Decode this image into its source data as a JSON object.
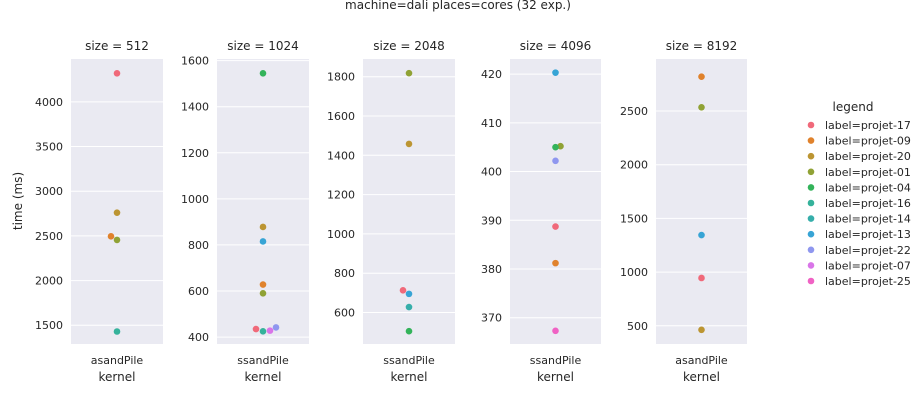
{
  "chart_data": {
    "type": "scatter",
    "suptitle": "machine=dali places=cores (32 exp.)",
    "ylabel": "time (ms)",
    "xlabel": "kernel",
    "legend": {
      "title": "legend",
      "placement": "right",
      "entries": [
        {
          "label": "label=projet-17",
          "color": "#f0697a"
        },
        {
          "label": "label=projet-09",
          "color": "#e0822c"
        },
        {
          "label": "label=projet-20",
          "color": "#bc9532"
        },
        {
          "label": "label=projet-01",
          "color": "#90a235"
        },
        {
          "label": "label=projet-04",
          "color": "#33b35a"
        },
        {
          "label": "label=projet-16",
          "color": "#35b29b"
        },
        {
          "label": "label=projet-14",
          "color": "#36aeaa"
        },
        {
          "label": "label=projet-13",
          "color": "#37a4d5"
        },
        {
          "label": "label=projet-22",
          "color": "#8f97ef"
        },
        {
          "label": "label=projet-07",
          "color": "#d975e8"
        },
        {
          "label": "label=projet-25",
          "color": "#f062c4"
        }
      ]
    },
    "grid": true,
    "panels": [
      {
        "title": "size = 512",
        "category": "asandPile",
        "ylim": [
          1290,
          4480
        ],
        "yticks": [
          1500,
          2000,
          2500,
          3000,
          3500,
          4000
        ],
        "points": [
          {
            "label": "label=projet-17",
            "y": 4320
          },
          {
            "label": "label=projet-20",
            "y": 2760
          },
          {
            "label": "label=projet-09",
            "y": 2495
          },
          {
            "label": "label=projet-01",
            "y": 2455
          },
          {
            "label": "label=projet-16",
            "y": 1430
          }
        ]
      },
      {
        "title": "size = 1024",
        "category": "ssandPile",
        "ylim": [
          370,
          1607
        ],
        "yticks": [
          400,
          600,
          800,
          1000,
          1200,
          1400,
          1600
        ],
        "points": [
          {
            "label": "label=projet-04",
            "y": 1545
          },
          {
            "label": "label=projet-20",
            "y": 878
          },
          {
            "label": "label=projet-13",
            "y": 815
          },
          {
            "label": "label=projet-09",
            "y": 628
          },
          {
            "label": "label=projet-01",
            "y": 590
          },
          {
            "label": "label=projet-17",
            "y": 435
          },
          {
            "label": "label=projet-16",
            "y": 425
          },
          {
            "label": "label=projet-07",
            "y": 428
          },
          {
            "label": "label=projet-22",
            "y": 442
          }
        ]
      },
      {
        "title": "size = 2048",
        "category": "ssandPile",
        "ylim": [
          440,
          1890
        ],
        "yticks": [
          600,
          800,
          1000,
          1200,
          1400,
          1600,
          1800
        ],
        "points": [
          {
            "label": "label=projet-01",
            "y": 1818
          },
          {
            "label": "label=projet-20",
            "y": 1458
          },
          {
            "label": "label=projet-17",
            "y": 713
          },
          {
            "label": "label=projet-13",
            "y": 695
          },
          {
            "label": "label=projet-14",
            "y": 628
          },
          {
            "label": "label=projet-04",
            "y": 505
          }
        ]
      },
      {
        "title": "size = 4096",
        "category": "ssandPile",
        "ylim": [
          364.6,
          423.1
        ],
        "yticks": [
          370,
          380,
          390,
          400,
          410,
          420
        ],
        "points": [
          {
            "label": "label=projet-13",
            "y": 420.3
          },
          {
            "label": "label=projet-01",
            "y": 405.2
          },
          {
            "label": "label=projet-04",
            "y": 405.0
          },
          {
            "label": "label=projet-22",
            "y": 402.2
          },
          {
            "label": "label=projet-17",
            "y": 388.7
          },
          {
            "label": "label=projet-09",
            "y": 381.2
          },
          {
            "label": "label=projet-25",
            "y": 367.3
          }
        ]
      },
      {
        "title": "size = 8192",
        "category": "asandPile",
        "ylim": [
          330,
          2985
        ],
        "yticks": [
          500,
          1000,
          1500,
          2000,
          2500
        ],
        "points": [
          {
            "label": "label=projet-09",
            "y": 2820
          },
          {
            "label": "label=projet-01",
            "y": 2535
          },
          {
            "label": "label=projet-13",
            "y": 1345
          },
          {
            "label": "label=projet-17",
            "y": 945
          },
          {
            "label": "label=projet-20",
            "y": 462
          }
        ]
      }
    ]
  }
}
